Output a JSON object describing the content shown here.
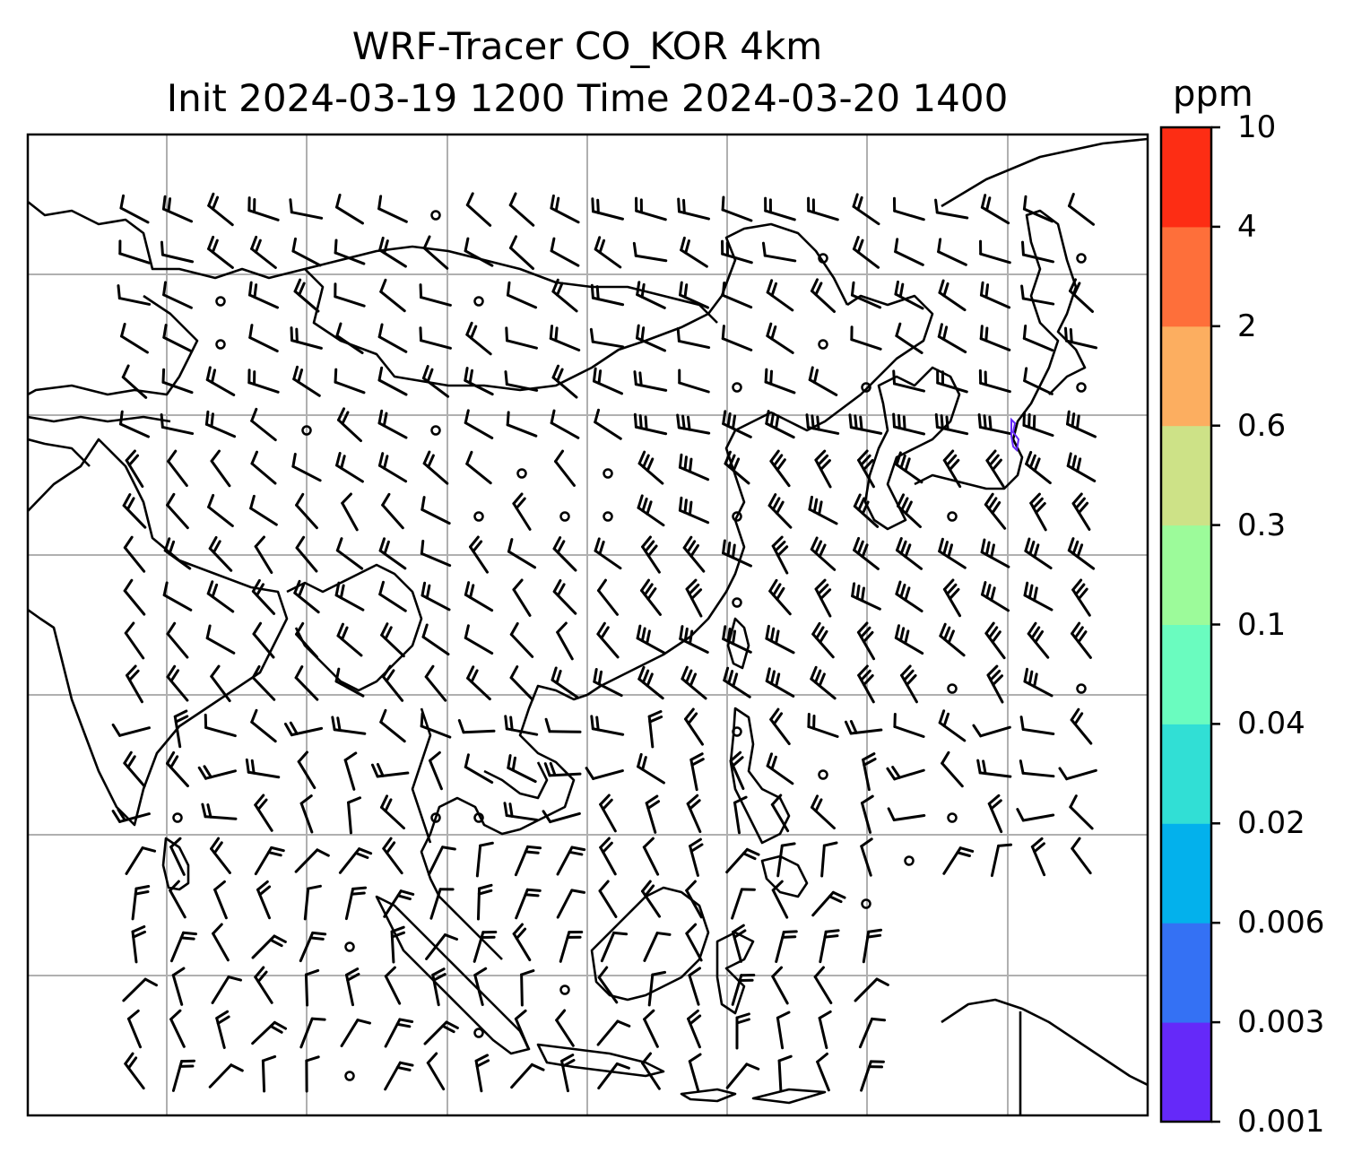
{
  "title_line1": "WRF-Tracer CO_KOR 4km",
  "title_line2": "Init 2024-03-19 1200 Time 2024-03-20 1400",
  "colorbar": {
    "unit": "ppm",
    "levels": [
      "0.001",
      "0.003",
      "0.006",
      "0.02",
      "0.04",
      "0.1",
      "0.3",
      "0.6",
      "2",
      "4",
      "10"
    ],
    "colors": [
      "#6529f9",
      "#3471f4",
      "#03b1ec",
      "#31dfd5",
      "#6afcbf",
      "#9cfb9a",
      "#cde287",
      "#fcae60",
      "#fe6f3a",
      "#fd2d14"
    ]
  },
  "map": {
    "gridlines": true,
    "coastlines": true,
    "wind_barbs": true,
    "tracer_field_color": "#6529f9"
  }
}
